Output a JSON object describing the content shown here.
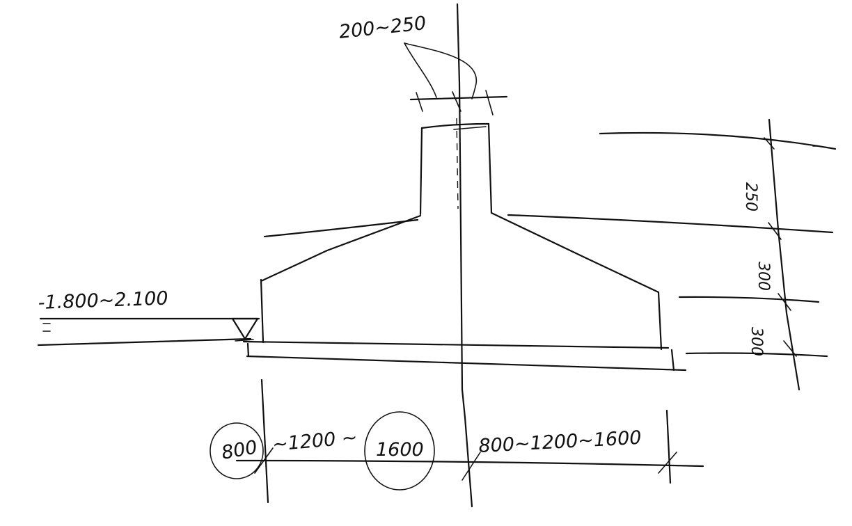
{
  "annotations": {
    "top_width": "200~250",
    "footing_depth": "-1.800~2.100",
    "dim_upper": "250",
    "dim_middle": "300",
    "dim_lower": "300",
    "bottom_left_small": "800",
    "bottom_left_range": "~1200 ~",
    "bottom_left_circled": "1600",
    "bottom_right": "800~1200~1600"
  },
  "colors": {
    "ink": "#111111",
    "paper": "#ffffff"
  }
}
